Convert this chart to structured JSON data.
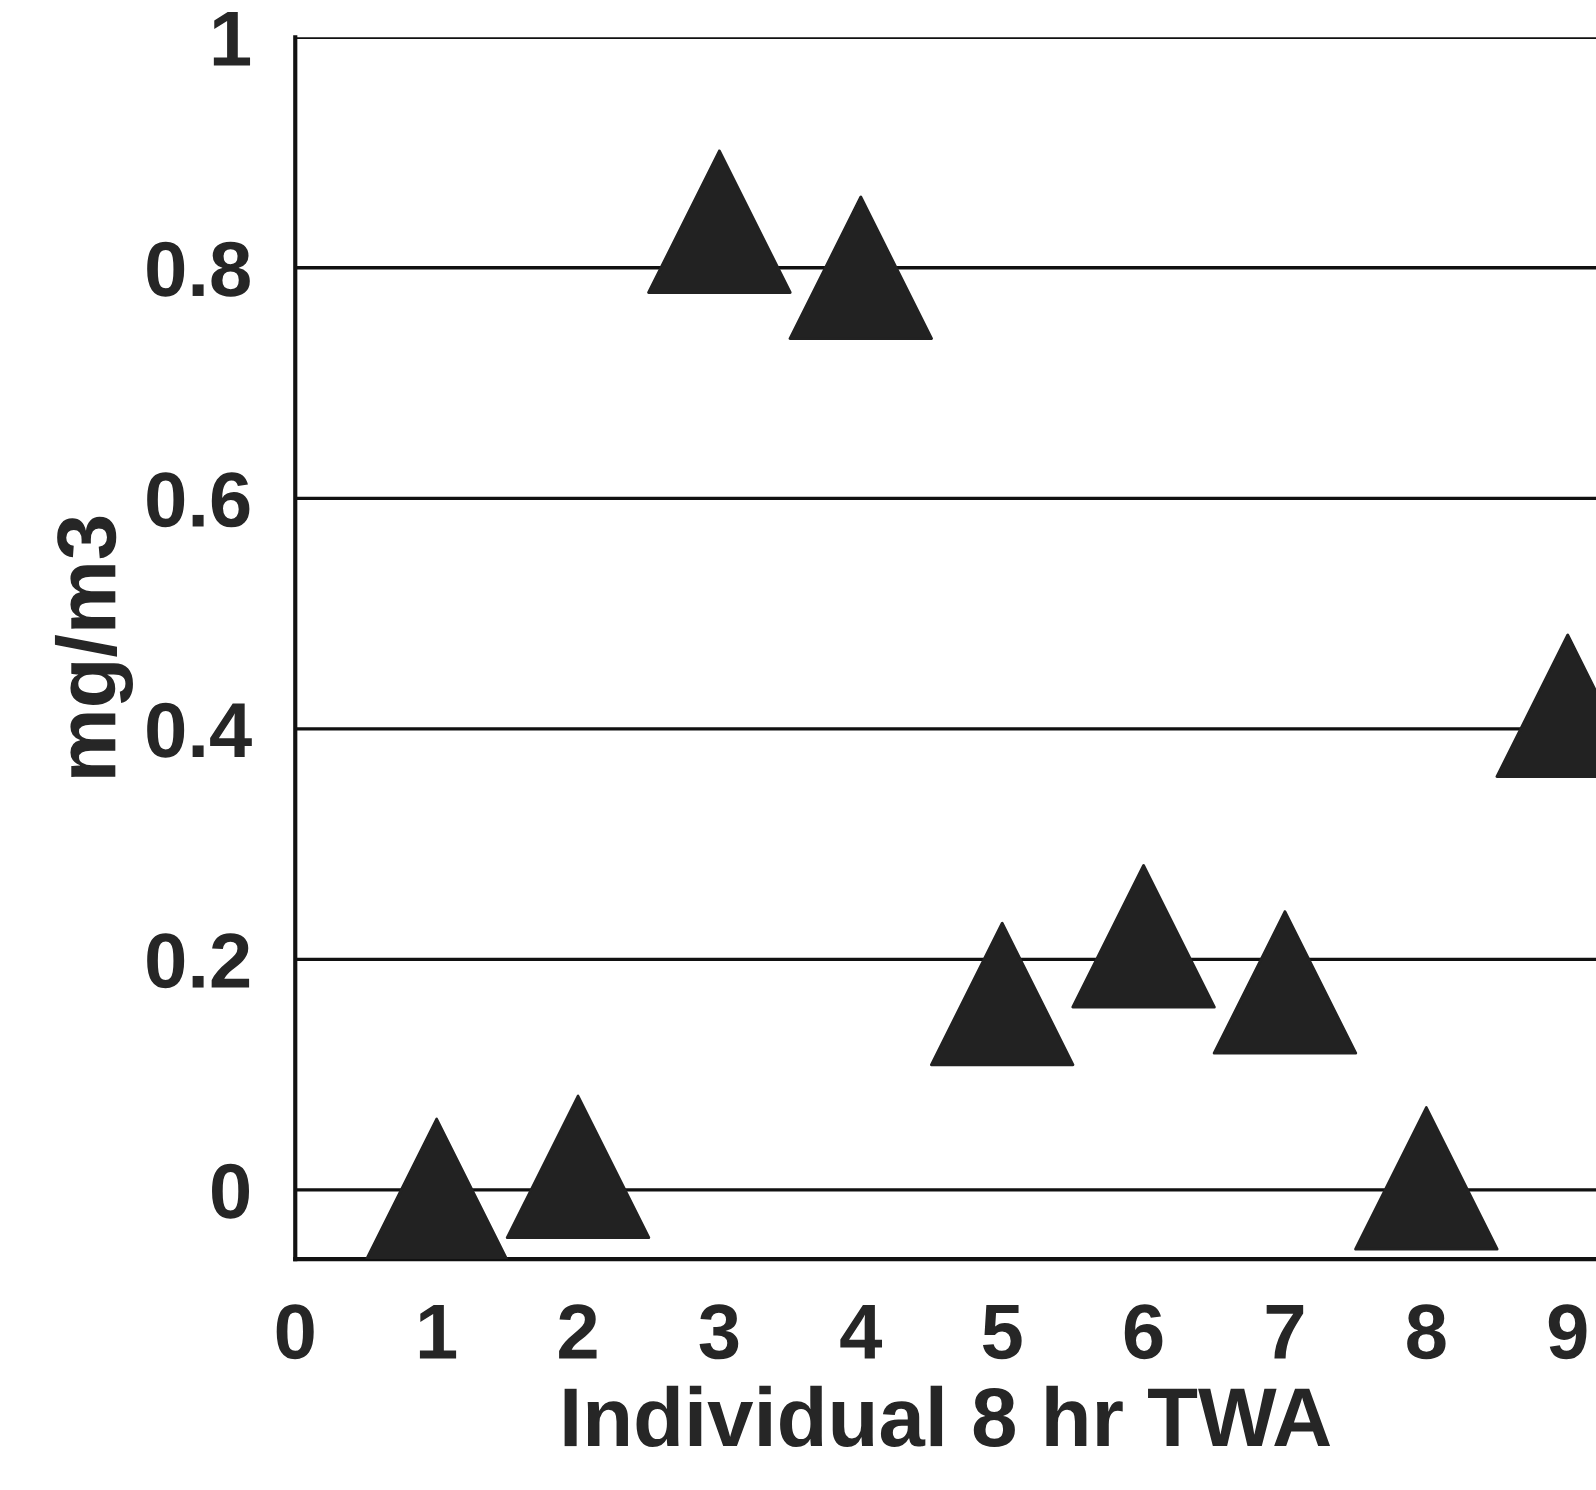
{
  "chart_data": {
    "type": "scatter",
    "xlabel": "Individual 8 hr TWA",
    "ylabel": "mg/m3",
    "x": [
      1,
      2,
      3,
      4,
      5,
      6,
      7,
      8,
      9
    ],
    "series": [
      {
        "color": "#222222",
        "values": [
          0.0,
          0.02,
          0.84,
          0.8,
          0.17,
          0.22,
          0.18,
          0.01,
          0.42
        ]
      }
    ],
    "xlim": [
      0,
      9.2
    ],
    "ylim": [
      -0.06,
      1
    ],
    "xticks": [
      0,
      1,
      2,
      3,
      4,
      5,
      6,
      7,
      8,
      9
    ],
    "yticks": [
      0,
      0.2,
      0.4,
      0.6,
      0.8,
      1
    ],
    "grid": "y",
    "marker": "triangle"
  }
}
